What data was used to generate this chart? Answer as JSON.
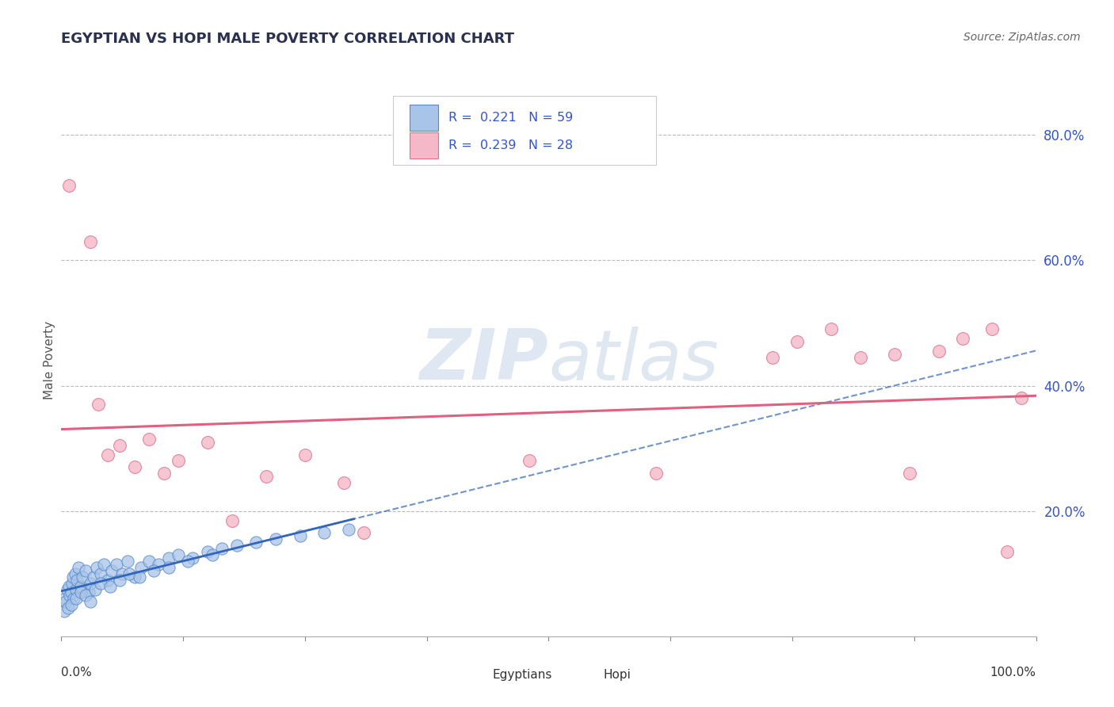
{
  "title": "EGYPTIAN VS HOPI MALE POVERTY CORRELATION CHART",
  "source": "Source: ZipAtlas.com",
  "ylabel": "Male Poverty",
  "xlim": [
    0.0,
    1.0
  ],
  "ylim": [
    0.0,
    0.88
  ],
  "yticks": [
    0.0,
    0.2,
    0.4,
    0.6,
    0.8
  ],
  "ytick_labels": [
    "",
    "20.0%",
    "40.0%",
    "60.0%",
    "80.0%"
  ],
  "egyptian_color": "#a8c4e8",
  "egyptian_edge": "#5588cc",
  "hopi_color": "#f4b8c8",
  "hopi_edge": "#e07090",
  "trend_egyptian_color": "#3366bb",
  "trend_hopi_color": "#e06080",
  "background_color": "#ffffff",
  "grid_color": "#bbbbbb",
  "watermark_color": "#c8d8ec",
  "legend_text_color": "#3355cc",
  "ytick_color": "#3355cc",
  "egyptians_x": [
    0.003,
    0.004,
    0.005,
    0.006,
    0.007,
    0.008,
    0.009,
    0.01,
    0.011,
    0.012,
    0.013,
    0.014,
    0.015,
    0.016,
    0.018,
    0.02,
    0.022,
    0.025,
    0.028,
    0.03,
    0.033,
    0.036,
    0.04,
    0.044,
    0.048,
    0.052,
    0.057,
    0.062,
    0.068,
    0.075,
    0.082,
    0.09,
    0.1,
    0.11,
    0.12,
    0.135,
    0.15,
    0.165,
    0.18,
    0.2,
    0.22,
    0.245,
    0.27,
    0.295,
    0.01,
    0.015,
    0.02,
    0.025,
    0.03,
    0.035,
    0.04,
    0.05,
    0.06,
    0.07,
    0.08,
    0.095,
    0.11,
    0.13,
    0.155
  ],
  "egyptians_y": [
    0.04,
    0.06,
    0.055,
    0.075,
    0.045,
    0.08,
    0.065,
    0.07,
    0.085,
    0.095,
    0.06,
    0.1,
    0.075,
    0.09,
    0.11,
    0.08,
    0.095,
    0.105,
    0.07,
    0.085,
    0.095,
    0.11,
    0.1,
    0.115,
    0.09,
    0.105,
    0.115,
    0.1,
    0.12,
    0.095,
    0.11,
    0.12,
    0.115,
    0.125,
    0.13,
    0.125,
    0.135,
    0.14,
    0.145,
    0.15,
    0.155,
    0.16,
    0.165,
    0.17,
    0.05,
    0.06,
    0.07,
    0.065,
    0.055,
    0.075,
    0.085,
    0.08,
    0.09,
    0.1,
    0.095,
    0.105,
    0.11,
    0.12,
    0.13
  ],
  "hopi_x": [
    0.008,
    0.03,
    0.038,
    0.048,
    0.06,
    0.075,
    0.09,
    0.105,
    0.12,
    0.15,
    0.175,
    0.21,
    0.25,
    0.29,
    0.31,
    0.48,
    0.61,
    0.73,
    0.755,
    0.79,
    0.82,
    0.855,
    0.87,
    0.9,
    0.925,
    0.955,
    0.97,
    0.985
  ],
  "hopi_y": [
    0.72,
    0.63,
    0.37,
    0.29,
    0.305,
    0.27,
    0.315,
    0.26,
    0.28,
    0.31,
    0.185,
    0.255,
    0.29,
    0.245,
    0.165,
    0.28,
    0.26,
    0.445,
    0.47,
    0.49,
    0.445,
    0.45,
    0.26,
    0.455,
    0.475,
    0.49,
    0.135,
    0.38
  ]
}
